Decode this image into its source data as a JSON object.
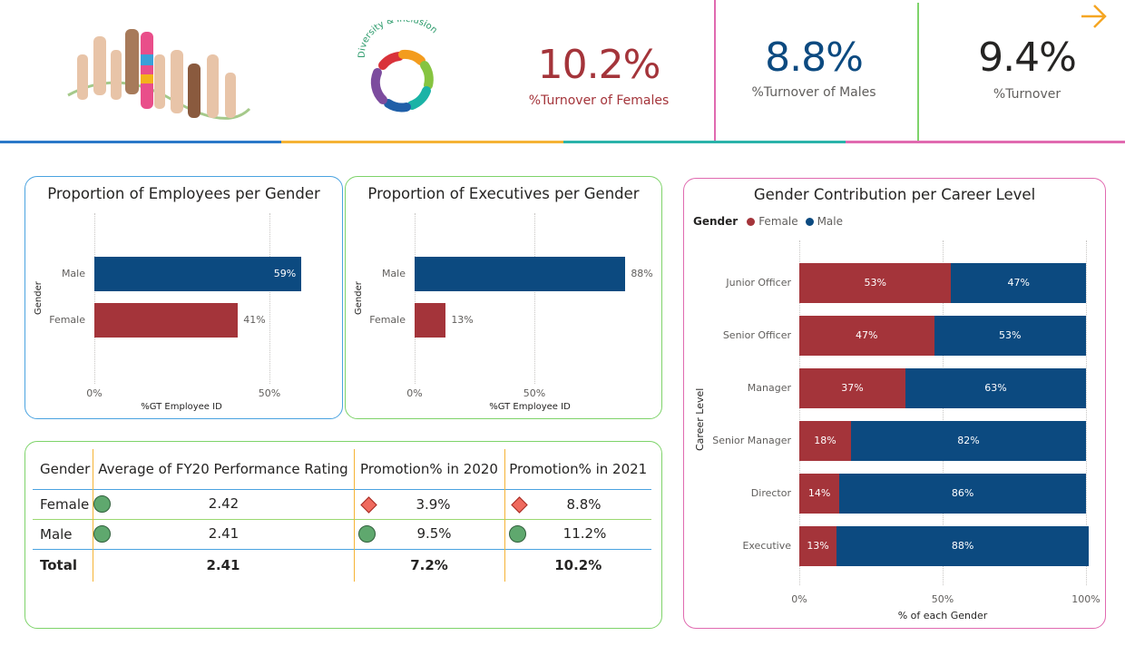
{
  "header": {
    "logo_text": "Diversity & Inclusion",
    "kpis": [
      {
        "value": "10.2%",
        "label": "%Turnover of Females",
        "color": "#a4343a"
      },
      {
        "value": "8.8%",
        "label": "%Turnover of Males",
        "color": "#0c4a80"
      },
      {
        "value": "9.4%",
        "label": "%Turnover",
        "color": "#252423"
      }
    ],
    "arrow_icon": "arrow-right-icon"
  },
  "colors": {
    "female": "#a4343a",
    "male": "#0c4a80"
  },
  "chart_data": [
    {
      "type": "bar",
      "orientation": "horizontal",
      "title": "Proportion of Employees per Gender",
      "xlabel": "%GT Employee ID",
      "ylabel": "Gender",
      "categories": [
        "Male",
        "Female"
      ],
      "values": [
        59,
        41
      ],
      "labels": [
        "59%",
        "41%"
      ],
      "xticks": [
        "0%",
        "50%"
      ],
      "xlim": [
        0,
        60
      ]
    },
    {
      "type": "bar",
      "orientation": "horizontal",
      "title": "Proportion of Executives per Gender",
      "xlabel": "%GT Employee ID",
      "ylabel": "Gender",
      "categories": [
        "Male",
        "Female"
      ],
      "values": [
        88,
        13
      ],
      "labels": [
        "88%",
        "13%"
      ],
      "xticks": [
        "0%",
        "50%"
      ],
      "xlim": [
        0,
        100
      ]
    },
    {
      "type": "bar",
      "orientation": "horizontal",
      "stacked": true,
      "title": "Gender Contribution per Career Level",
      "xlabel": "% of each Gender",
      "ylabel": "Career Level",
      "legend_title": "Gender",
      "legend_position": "top-left",
      "categories": [
        "Junior Officer",
        "Senior Officer",
        "Manager",
        "Senior Manager",
        "Director",
        "Executive"
      ],
      "series": [
        {
          "name": "Female",
          "values": [
            53,
            47,
            37,
            18,
            14,
            13
          ]
        },
        {
          "name": "Male",
          "values": [
            47,
            53,
            63,
            82,
            86,
            88
          ]
        }
      ],
      "xticks": [
        "0%",
        "50%",
        "100%"
      ],
      "xlim": [
        0,
        100
      ]
    }
  ],
  "table": {
    "headers": [
      "Gender",
      "Average of FY20 Performance Rating",
      "Promotion% in 2020",
      "Promotion% in 2021"
    ],
    "rows": [
      {
        "gender": "Female",
        "rating": "2.42",
        "rating_icon": "circle",
        "p2020": "3.9%",
        "p2020_icon": "diamond",
        "p2021": "8.8%",
        "p2021_icon": "diamond"
      },
      {
        "gender": "Male",
        "rating": "2.41",
        "rating_icon": "circle",
        "p2020": "9.5%",
        "p2020_icon": "circle",
        "p2021": "11.2%",
        "p2021_icon": "circle"
      }
    ],
    "total": {
      "label": "Total",
      "rating": "2.41",
      "p2020": "7.2%",
      "p2021": "10.2%"
    }
  }
}
